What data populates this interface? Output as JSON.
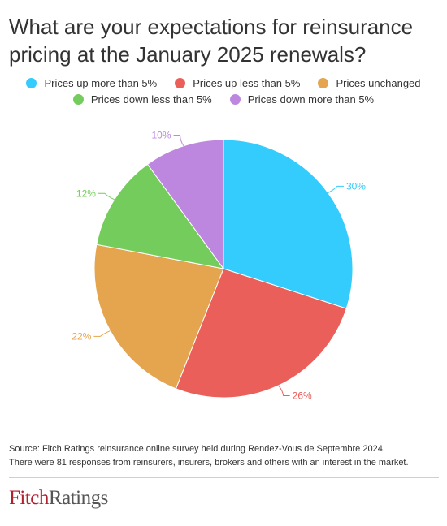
{
  "chart_data": {
    "type": "pie",
    "title": "What are your expectations for reinsurance pricing at the January 2025 renewals?",
    "legend_position": "top",
    "slices": [
      {
        "label": "Prices up more than 5%",
        "value": 30,
        "display": "30%",
        "color": "#34cbfd"
      },
      {
        "label": "Prices up less than 5%",
        "value": 26,
        "display": "26%",
        "color": "#ea5f5a"
      },
      {
        "label": "Prices unchanged",
        "value": 22,
        "display": "22%",
        "color": "#e5a54e"
      },
      {
        "label": "Prices down less than 5%",
        "value": 12,
        "display": "12%",
        "color": "#74cc5c"
      },
      {
        "label": "Prices down more than 5%",
        "value": 10,
        "display": "10%",
        "color": "#be87df"
      }
    ]
  },
  "footer": {
    "source": "Source: Fitch Ratings reinsurance online survey held during Rendez-Vous de Septembre 2024.",
    "note": "There were 81 responses from reinsurers, insurers, brokers and others with an interest in the market."
  },
  "logo": {
    "part1": "Fitch",
    "part2": "Ratings"
  }
}
